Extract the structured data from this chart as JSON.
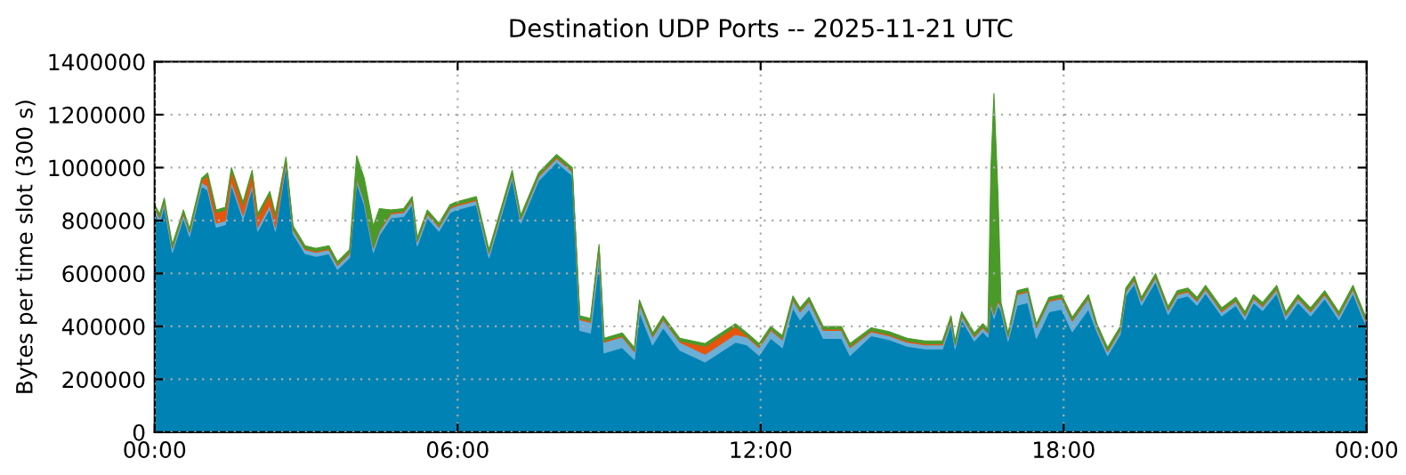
{
  "chart_data": {
    "type": "area",
    "stacked": true,
    "title": "Destination UDP Ports -- 2025-11-21 UTC",
    "ylabel": "Bytes per time slot (300 s)",
    "x": [
      0,
      0.1,
      0.19,
      0.35,
      0.57,
      0.69,
      0.93,
      1.05,
      1.22,
      1.4,
      1.52,
      1.75,
      1.93,
      2.04,
      2.28,
      2.39,
      2.6,
      2.74,
      2.98,
      3.2,
      3.45,
      3.62,
      3.86,
      4.0,
      4.15,
      4.33,
      4.45,
      4.68,
      4.93,
      5.1,
      5.2,
      5.4,
      5.63,
      5.85,
      5.97,
      6.37,
      6.62,
      7.08,
      7.25,
      7.6,
      7.96,
      8.27,
      8.42,
      8.63,
      8.8,
      8.9,
      9.26,
      9.5,
      9.6,
      9.86,
      10.07,
      10.4,
      10.9,
      11.5,
      11.73,
      11.97,
      12.2,
      12.43,
      12.64,
      12.78,
      12.96,
      13.24,
      13.6,
      13.77,
      14.19,
      14.54,
      14.9,
      15.25,
      15.6,
      15.77,
      15.85,
      15.98,
      16.23,
      16.4,
      16.5,
      16.56,
      16.62,
      16.7,
      16.76,
      16.9,
      17.08,
      17.29,
      17.46,
      17.71,
      17.96,
      18.17,
      18.49,
      18.66,
      18.87,
      19.12,
      19.23,
      19.4,
      19.54,
      19.82,
      20.07,
      20.25,
      20.46,
      20.64,
      20.81,
      21.13,
      21.41,
      21.59,
      21.76,
      21.94,
      22.22,
      22.4,
      22.64,
      22.89,
      23.17,
      23.45,
      23.73,
      23.94,
      24
    ],
    "series": [
      {
        "color": "#0083b4",
        "values": [
          830000,
          795000,
          855000,
          680000,
          810000,
          740000,
          930000,
          915000,
          775000,
          785000,
          935000,
          805000,
          925000,
          760000,
          845000,
          760000,
          1010000,
          750000,
          675000,
          665000,
          675000,
          615000,
          660000,
          945000,
          860000,
          680000,
          745000,
          810000,
          815000,
          860000,
          705000,
          810000,
          760000,
          830000,
          840000,
          860000,
          660000,
          960000,
          790000,
          950000,
          1020000,
          970000,
          385000,
          375000,
          655000,
          300000,
          320000,
          275000,
          455000,
          330000,
          395000,
          310000,
          265000,
          340000,
          330000,
          290000,
          355000,
          320000,
          470000,
          425000,
          465000,
          355000,
          355000,
          290000,
          365000,
          350000,
          325000,
          315000,
          315000,
          410000,
          315000,
          425000,
          345000,
          380000,
          360000,
          480000,
          430000,
          480000,
          460000,
          345000,
          480000,
          490000,
          355000,
          455000,
          465000,
          380000,
          465000,
          380000,
          290000,
          370000,
          515000,
          560000,
          480000,
          570000,
          445000,
          505000,
          515000,
          480000,
          525000,
          440000,
          480000,
          425000,
          490000,
          460000,
          525000,
          425000,
          490000,
          440000,
          505000,
          425000,
          525000,
          425000,
          400000
        ]
      },
      {
        "color": "#6baed6",
        "values": [
          15000,
          15000,
          15000,
          15000,
          15000,
          15000,
          15000,
          15000,
          15000,
          15000,
          15000,
          15000,
          15000,
          15000,
          15000,
          15000,
          15000,
          15000,
          15000,
          15000,
          15000,
          15000,
          15000,
          15000,
          15000,
          15000,
          15000,
          15000,
          15000,
          15000,
          15000,
          15000,
          15000,
          15000,
          15000,
          15000,
          15000,
          15000,
          15000,
          15000,
          15000,
          15000,
          40000,
          40000,
          40000,
          40000,
          40000,
          30000,
          30000,
          30000,
          30000,
          30000,
          30000,
          30000,
          30000,
          30000,
          30000,
          30000,
          30000,
          30000,
          30000,
          30000,
          30000,
          30000,
          15000,
          15000,
          15000,
          15000,
          15000,
          15000,
          15000,
          15000,
          15000,
          15000,
          15000,
          15000,
          15000,
          15000,
          15000,
          15000,
          40000,
          40000,
          40000,
          40000,
          40000,
          40000,
          40000,
          15000,
          15000,
          15000,
          15000,
          15000,
          15000,
          15000,
          15000,
          15000,
          15000,
          15000,
          15000,
          15000,
          15000,
          15000,
          15000,
          15000,
          15000,
          15000,
          15000,
          15000,
          15000,
          15000,
          15000,
          15000,
          15000
        ]
      },
      {
        "color": "#e6550d",
        "values": [
          5000,
          5000,
          5000,
          5000,
          5000,
          5000,
          5000,
          40000,
          40000,
          40000,
          40000,
          40000,
          40000,
          40000,
          40000,
          40000,
          5000,
          5000,
          5000,
          5000,
          5000,
          5000,
          5000,
          5000,
          5000,
          5000,
          5000,
          5000,
          5000,
          5000,
          5000,
          5000,
          5000,
          5000,
          5000,
          5000,
          5000,
          5000,
          5000,
          5000,
          5000,
          5000,
          5000,
          5000,
          5000,
          5000,
          5000,
          5000,
          5000,
          5000,
          5000,
          5000,
          30000,
          30000,
          5000,
          5000,
          5000,
          5000,
          5000,
          5000,
          5000,
          5000,
          5000,
          5000,
          5000,
          5000,
          5000,
          5000,
          5000,
          5000,
          5000,
          5000,
          5000,
          5000,
          5000,
          5000,
          5000,
          5000,
          5000,
          5000,
          5000,
          5000,
          5000,
          5000,
          5000,
          5000,
          5000,
          5000,
          5000,
          5000,
          5000,
          5000,
          5000,
          5000,
          5000,
          5000,
          5000,
          5000,
          5000,
          5000,
          5000,
          5000,
          5000,
          5000,
          5000,
          5000,
          5000,
          5000,
          5000,
          5000,
          5000,
          5000,
          5000
        ]
      },
      {
        "color": "#4a9a2a",
        "values": [
          10000,
          10000,
          10000,
          10000,
          10000,
          10000,
          10000,
          10000,
          10000,
          10000,
          10000,
          10000,
          10000,
          10000,
          10000,
          10000,
          10000,
          10000,
          10000,
          10000,
          10000,
          10000,
          10000,
          80000,
          80000,
          80000,
          80000,
          10000,
          10000,
          10000,
          10000,
          10000,
          10000,
          10000,
          10000,
          10000,
          10000,
          10000,
          10000,
          10000,
          10000,
          10000,
          10000,
          10000,
          10000,
          10000,
          10000,
          10000,
          10000,
          10000,
          10000,
          10000,
          10000,
          10000,
          10000,
          10000,
          10000,
          10000,
          10000,
          10000,
          10000,
          10000,
          10000,
          10000,
          10000,
          10000,
          10000,
          10000,
          10000,
          10000,
          10000,
          10000,
          10000,
          10000,
          10000,
          500000,
          830000,
          400000,
          10000,
          10000,
          10000,
          10000,
          10000,
          10000,
          10000,
          10000,
          10000,
          10000,
          10000,
          10000,
          10000,
          10000,
          10000,
          10000,
          10000,
          10000,
          10000,
          10000,
          10000,
          10000,
          10000,
          10000,
          10000,
          10000,
          10000,
          10000,
          10000,
          10000,
          10000,
          10000,
          10000,
          10000,
          10000
        ]
      }
    ],
    "xlim": [
      0,
      24
    ],
    "xticks": [
      {
        "value": 0,
        "label": "00:00"
      },
      {
        "value": 6,
        "label": "06:00"
      },
      {
        "value": 12,
        "label": "12:00"
      },
      {
        "value": 18,
        "label": "18:00"
      },
      {
        "value": 24,
        "label": "00:00"
      }
    ],
    "ylim": [
      0,
      1400000
    ],
    "yticks": [
      0,
      200000,
      400000,
      600000,
      800000,
      1000000,
      1200000,
      1400000
    ],
    "grid": true
  }
}
